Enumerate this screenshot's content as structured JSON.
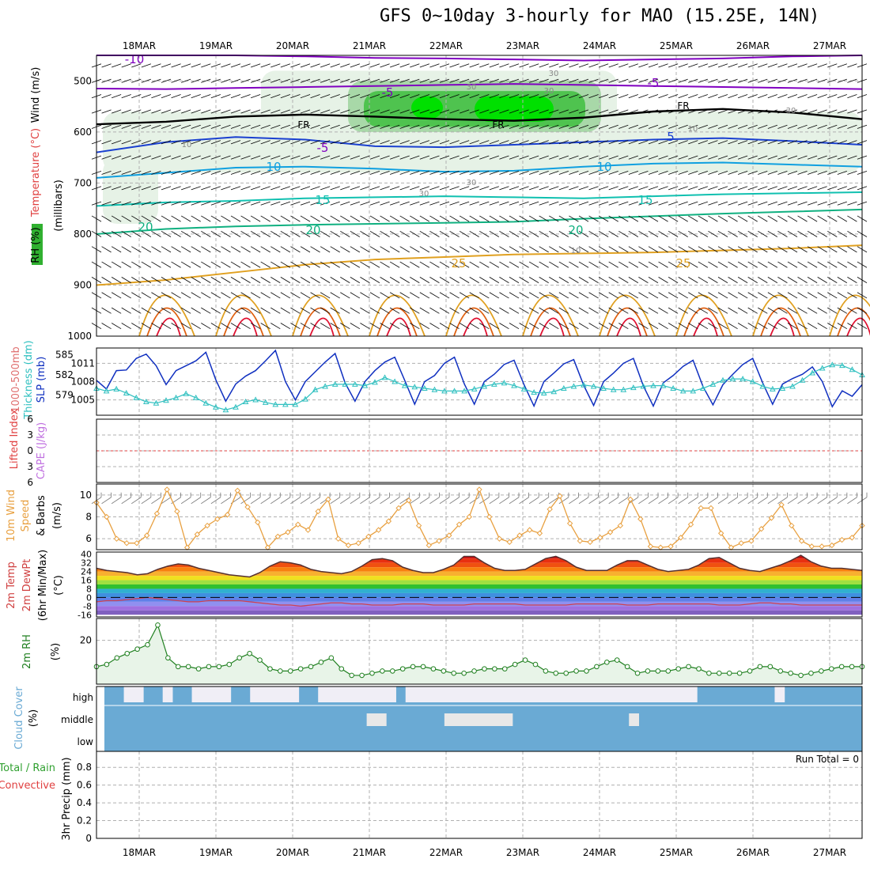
{
  "title": "GFS 0~10day 3-hourly for MAO (15.25E, 14N)",
  "dates": [
    "18MAR",
    "19MAR",
    "20MAR",
    "21MAR",
    "22MAR",
    "23MAR",
    "24MAR",
    "25MAR",
    "26MAR",
    "27MAR"
  ],
  "colors": {
    "rh_light": "#e6f2e6",
    "rh_mid": "#a8d8a8",
    "rh_high": "#4fc34f",
    "rh_top": "#00e000",
    "temp_cold": "#8000c0",
    "temp_blue": "#1a40d0",
    "temp_10": "#10a0e0",
    "temp_15": "#10c0b0",
    "temp_20": "#10b080",
    "temp_25": "#e0a020",
    "temp_hot": "#e06010",
    "temp_vhot": "#e01030",
    "slp": "#1030c0",
    "thick": "#30c0c0",
    "wind10": "#e8a040",
    "rh2m": "#208020",
    "rh2m_fill": "#e8f4e8",
    "cloud": "#6aaad4",
    "cloud_gap": "#f0eef6"
  },
  "chart_data": [
    {
      "type": "heatmap",
      "panel": "upper-air",
      "ylabel_parts": [
        "RH (%)",
        "Temperature (°C)",
        "Wind (m/s)",
        "(millibars)"
      ],
      "y_ticks": [
        500,
        600,
        700,
        800,
        900,
        1000
      ],
      "ylim": [
        1000,
        450
      ],
      "temp_labels": [
        "-10",
        "-5",
        "-5",
        "-5",
        "5",
        "10",
        "10",
        "15",
        "15",
        "20",
        "20",
        "20",
        "25",
        "25"
      ],
      "freezing_labels": [
        "FR",
        "FR",
        "FR"
      ],
      "rh_labels": [
        "30",
        "30",
        "30",
        "30",
        "10",
        "10",
        "10",
        "30",
        "30"
      ],
      "contours": [
        {
          "name": "-10",
          "series": [
            450,
            450,
            450,
            452,
            455,
            456,
            458,
            460,
            458,
            456,
            452,
            450
          ]
        },
        {
          "name": "-5",
          "series": [
            515,
            516,
            514,
            512,
            510,
            508,
            506,
            508,
            510,
            512,
            514,
            516
          ]
        },
        {
          "name": "FR",
          "series": [
            585,
            580,
            570,
            566,
            570,
            575,
            578,
            572,
            560,
            555,
            562,
            575
          ]
        },
        {
          "name": "5",
          "series": [
            640,
            620,
            610,
            615,
            628,
            630,
            625,
            620,
            615,
            612,
            618,
            625
          ]
        },
        {
          "name": "10",
          "series": [
            690,
            680,
            670,
            668,
            672,
            678,
            676,
            668,
            662,
            660,
            664,
            668
          ]
        },
        {
          "name": "15",
          "series": [
            745,
            738,
            735,
            730,
            728,
            726,
            728,
            730,
            726,
            722,
            720,
            718
          ]
        },
        {
          "name": "20",
          "series": [
            800,
            790,
            785,
            782,
            780,
            778,
            776,
            770,
            765,
            760,
            756,
            752
          ]
        },
        {
          "name": "25",
          "series": [
            900,
            890,
            875,
            860,
            850,
            845,
            840,
            838,
            836,
            832,
            828,
            822
          ]
        }
      ]
    },
    {
      "type": "line",
      "panel": "slp-thickness",
      "ylabel_left": [
        "1000-500mb",
        "Thickness (dm)"
      ],
      "ylabel_right": "SLP (mb)",
      "y_ticks_left": [
        579,
        582,
        585
      ],
      "y_ticks_right": [
        1005,
        1008,
        1011
      ],
      "series": [
        {
          "name": "SLP",
          "values": [
            1008.2,
            1006.8,
            1009.8,
            1009.9,
            1011.8,
            1012.5,
            1010.6,
            1007.5,
            1009.8,
            1010.6,
            1011.4,
            1012.8,
            1008.3,
            1004.8,
            1007.6,
            1008.9,
            1009.8,
            1011.4,
            1013.1,
            1008.0,
            1005.0,
            1008.0,
            1009.6,
            1011.2,
            1012.6,
            1007.8,
            1004.8,
            1008.0,
            1009.8,
            1011.2,
            1012.0,
            1008.2,
            1004.3,
            1008.0,
            1009.0,
            1011.0,
            1012.0,
            1007.6,
            1004.3,
            1008.0,
            1009.2,
            1010.8,
            1011.5,
            1007.5,
            1004.0,
            1008.0,
            1009.4,
            1010.9,
            1011.6,
            1007.4,
            1004.1,
            1008.0,
            1009.4,
            1011.0,
            1011.8,
            1007.3,
            1004.0,
            1007.8,
            1009.0,
            1010.5,
            1011.5,
            1007.2,
            1004.2,
            1007.5,
            1009.2,
            1010.8,
            1011.8,
            1007.8,
            1004.3,
            1007.6,
            1008.5,
            1009.2,
            1010.4,
            1008.0,
            1003.9,
            1006.5,
            1005.6,
            1007.5
          ]
        },
        {
          "name": "Thickness",
          "values": [
            580.0,
            579.6,
            579.9,
            579.3,
            578.6,
            578.0,
            577.8,
            578.2,
            578.6,
            579.2,
            578.6,
            577.8,
            577.2,
            576.8,
            577.2,
            578.0,
            578.3,
            577.9,
            577.6,
            577.6,
            577.6,
            578.4,
            579.8,
            580.3,
            580.6,
            580.6,
            580.6,
            580.4,
            580.9,
            581.6,
            581.0,
            580.4,
            580.2,
            580.0,
            579.8,
            579.6,
            579.6,
            579.6,
            579.9,
            580.3,
            580.6,
            580.8,
            580.4,
            579.9,
            579.4,
            579.3,
            579.5,
            580.0,
            580.3,
            580.5,
            580.3,
            580.0,
            579.8,
            579.8,
            580.1,
            580.3,
            580.4,
            580.4,
            580.0,
            579.6,
            579.6,
            580.0,
            580.6,
            581.2,
            581.4,
            581.4,
            581.0,
            580.3,
            579.9,
            580.0,
            580.3,
            581.2,
            582.3,
            583.0,
            583.5,
            583.4,
            582.8,
            582.0
          ]
        }
      ]
    },
    {
      "type": "line",
      "panel": "stability",
      "ylabel_parts": [
        "Lifted Index",
        "CAPE (J/kg)"
      ],
      "y_ticks": [
        -6,
        -3,
        0,
        3,
        6
      ],
      "ylim": [
        6,
        -6
      ],
      "lifted_index": 0
    },
    {
      "type": "line",
      "panel": "wind10m",
      "ylabel_parts": [
        "10m Wind",
        "Speed",
        "& Barbs",
        "(m/s)"
      ],
      "y_ticks": [
        6,
        8,
        10
      ],
      "ylim": [
        5,
        11
      ],
      "series": [
        {
          "name": "10m Wind Speed",
          "values": [
            9.3,
            8.0,
            6.0,
            5.6,
            5.6,
            6.3,
            8.3,
            10.5,
            8.5,
            5.2,
            6.4,
            7.2,
            7.8,
            8.2,
            10.4,
            8.9,
            7.5,
            5.2,
            6.2,
            6.6,
            7.3,
            6.8,
            8.5,
            9.6,
            6.0,
            5.4,
            5.6,
            6.2,
            6.8,
            7.6,
            8.8,
            9.5,
            7.2,
            5.4,
            5.8,
            6.3,
            7.3,
            8.0,
            10.5,
            8.0,
            6.0,
            5.7,
            6.3,
            6.8,
            6.5,
            8.7,
            9.9,
            7.4,
            5.8,
            5.7,
            6.1,
            6.6,
            7.2,
            9.6,
            7.8,
            5.3,
            5.2,
            5.3,
            6.1,
            7.3,
            8.8,
            8.8,
            6.5,
            5.2,
            5.6,
            5.8,
            6.9,
            7.9,
            9.1,
            7.2,
            5.8,
            5.3,
            5.3,
            5.4,
            5.9,
            6.1,
            7.2
          ]
        }
      ]
    },
    {
      "type": "area",
      "panel": "temp2m",
      "ylabel_parts": [
        "2m Temp",
        "2m DewPt",
        "(6hr Min/Max)",
        "(°C)"
      ],
      "y_ticks": [
        40,
        32,
        24,
        16,
        8,
        0,
        -8,
        -16
      ],
      "ylim": [
        -18,
        42
      ],
      "series": [
        {
          "name": "2m Temp",
          "values": [
            27,
            25,
            24,
            23,
            21,
            22,
            26,
            29,
            31,
            30,
            27,
            25,
            23,
            21,
            20,
            19,
            23,
            29,
            33,
            32,
            30,
            26,
            24,
            23,
            22,
            24,
            29,
            35,
            36,
            34,
            28,
            25,
            23,
            23,
            26,
            30,
            38,
            38,
            32,
            27,
            25,
            25,
            26,
            31,
            36,
            38,
            34,
            28,
            25,
            25,
            25,
            30,
            34,
            34,
            30,
            26,
            24,
            25,
            26,
            30,
            36,
            37,
            32,
            27,
            25,
            24,
            27,
            30,
            34,
            39,
            33,
            29,
            27,
            27,
            26,
            25
          ]
        },
        {
          "name": "2m DewPt",
          "values": [
            -4,
            -3,
            -3,
            -2,
            -1,
            0,
            -1,
            -2,
            -3,
            -4,
            -4,
            -3,
            -3,
            -3,
            -3,
            -4,
            -5,
            -6,
            -7,
            -7,
            -8,
            -7,
            -6,
            -5,
            -5,
            -6,
            -6,
            -7,
            -7,
            -7,
            -6,
            -6,
            -6,
            -7,
            -7,
            -7,
            -7,
            -6,
            -6,
            -6,
            -6,
            -6,
            -7,
            -7,
            -7,
            -7,
            -7,
            -6,
            -6,
            -6,
            -6,
            -6,
            -7,
            -7,
            -7,
            -6,
            -6,
            -6,
            -6,
            -6,
            -6,
            -7,
            -7,
            -7,
            -6,
            -5,
            -5,
            -6,
            -6,
            -7,
            -7,
            -7,
            -7,
            -7,
            -7,
            -7
          ]
        }
      ]
    },
    {
      "type": "line",
      "panel": "rh2m",
      "ylabel_parts": [
        "2m RH",
        "(%)"
      ],
      "y_ticks": [
        20
      ],
      "ylim": [
        0,
        30
      ],
      "series": [
        {
          "name": "2m RH",
          "values": [
            8,
            9,
            12,
            14,
            16,
            18,
            27,
            12,
            8,
            8,
            7,
            8,
            8,
            9,
            12,
            14,
            11,
            7,
            6,
            6,
            7,
            8,
            10,
            12,
            7,
            4,
            4,
            5,
            6,
            6,
            7,
            8,
            8,
            7,
            6,
            5,
            5,
            6,
            7,
            7,
            7,
            9,
            11,
            9,
            6,
            5,
            5,
            6,
            6,
            8,
            10,
            11,
            8,
            5,
            6,
            6,
            6,
            7,
            8,
            7,
            5,
            5,
            5,
            5,
            6,
            8,
            8,
            6,
            5,
            4,
            5,
            6,
            7,
            8,
            8,
            8
          ]
        }
      ]
    },
    {
      "type": "heatmap",
      "panel": "cloud",
      "ylabel_parts": [
        "Cloud Cover",
        "(%)"
      ],
      "rows": [
        "high",
        "middle",
        "low"
      ],
      "high_cover": [
        1,
        1,
        0,
        0,
        1,
        1,
        0,
        1,
        1,
        0,
        0,
        0,
        0,
        1,
        1,
        0,
        0,
        0,
        0,
        0,
        1,
        1,
        0,
        0,
        0,
        0,
        0,
        0,
        0,
        0,
        1,
        0,
        0,
        0,
        0,
        0,
        0,
        0,
        0,
        0,
        0,
        0,
        0,
        0,
        0,
        0,
        0,
        0,
        0,
        0,
        0,
        0,
        0,
        0,
        0,
        0,
        0,
        0,
        0,
        0,
        0,
        1,
        1,
        1,
        1,
        1,
        1,
        1,
        1,
        0,
        1,
        1,
        1,
        1,
        1,
        1,
        1,
        1
      ],
      "mid_cover": [
        1,
        1,
        1,
        1,
        1,
        1,
        1,
        1,
        1,
        1,
        1,
        1,
        1,
        1,
        1,
        1,
        1,
        1,
        1,
        1,
        1,
        1,
        1,
        1,
        1,
        1,
        1,
        0,
        0,
        1,
        1,
        1,
        1,
        1,
        1,
        0,
        0,
        0,
        0,
        0,
        0,
        0,
        1,
        1,
        1,
        1,
        1,
        1,
        1,
        1,
        1,
        1,
        1,
        1,
        0,
        1,
        1,
        1,
        1,
        1,
        1,
        1,
        1,
        1,
        1,
        1,
        1,
        1,
        1,
        1,
        1,
        1,
        1,
        1,
        1,
        1,
        1,
        1
      ]
    },
    {
      "type": "bar",
      "panel": "precip",
      "ylabel_parts": [
        "3hr Precip (mm)",
        "Total / Rain",
        "Convective"
      ],
      "y_ticks": [
        0,
        0.2,
        0.4,
        0.6,
        0.8
      ],
      "ylim": [
        0,
        0.98
      ],
      "run_total": "Run Total = 0",
      "values": []
    }
  ]
}
